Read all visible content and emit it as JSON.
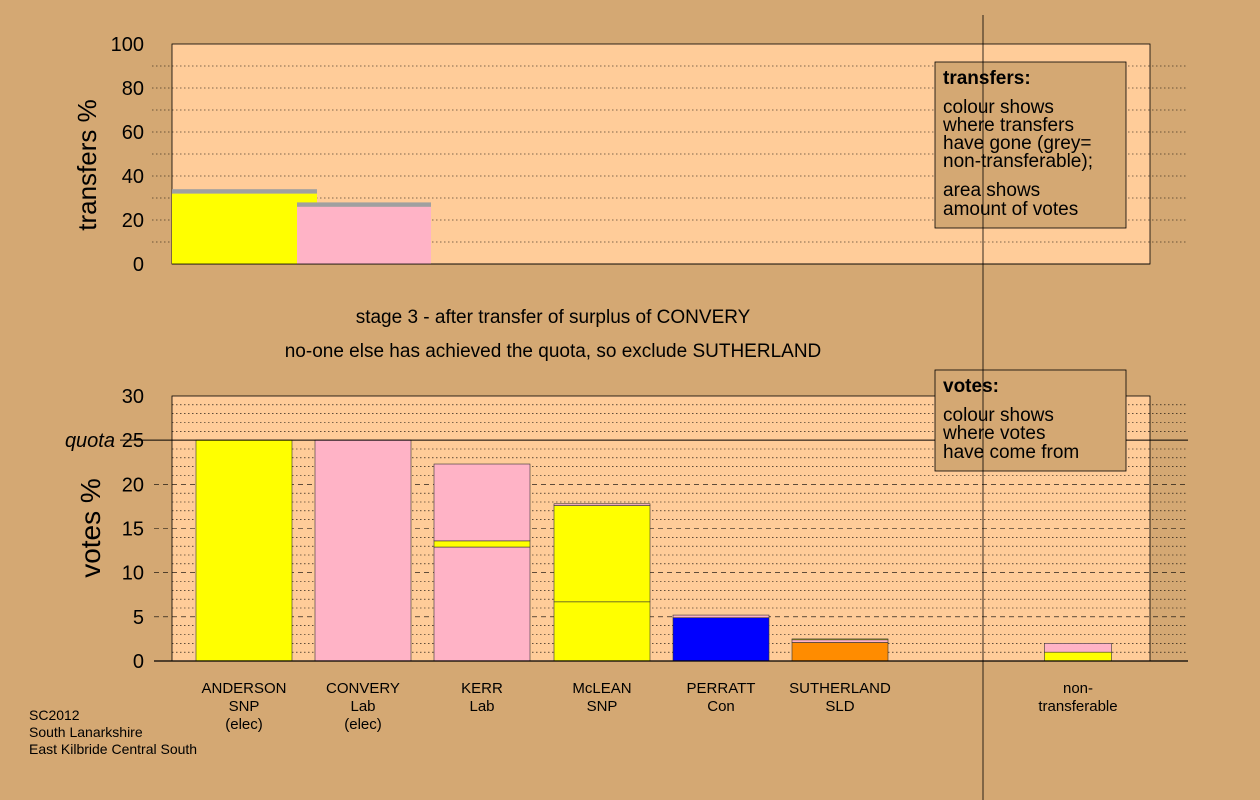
{
  "chart_data": [
    {
      "id": "transfers",
      "type": "bar",
      "ylabel": "transfers %",
      "ylim": [
        0,
        100
      ],
      "yticks": [
        0,
        20,
        40,
        60,
        80,
        100
      ],
      "bars": [
        {
          "candidate": "ANDERSON",
          "segments": [
            {
              "from": 0,
              "to": 32,
              "color": "#ffff00"
            },
            {
              "from": 32,
              "to": 34,
              "color": "#a0a0a0"
            }
          ]
        },
        {
          "candidate": "CONVERY",
          "segments": [
            {
              "from": 0,
              "to": 27,
              "color": "#ffb3c6"
            },
            {
              "from": 26,
              "to": 28,
              "color": "#a0a0a0"
            }
          ]
        }
      ],
      "legend": {
        "title": "transfers:",
        "lines1": [
          "colour shows",
          "where transfers",
          "have gone (grey=",
          "non-transferable);"
        ],
        "lines2": [
          "area shows",
          "amount of votes"
        ]
      }
    },
    {
      "id": "votes",
      "type": "bar",
      "ylabel": "votes %",
      "ylim": [
        0,
        30
      ],
      "yticks": [
        0,
        5,
        10,
        15,
        20,
        25,
        30
      ],
      "quota": 25,
      "quota_label": "quota",
      "categories": [
        {
          "name": "ANDERSON",
          "party": "SNP",
          "note": "(elec)",
          "segments": [
            {
              "value": 25,
              "color": "#ffff00"
            }
          ]
        },
        {
          "name": "CONVERY",
          "party": "Lab",
          "note": "(elec)",
          "segments": [
            {
              "value": 25,
              "color": "#ffb3c6"
            }
          ]
        },
        {
          "name": "KERR",
          "party": "Lab",
          "note": "",
          "segments": [
            {
              "value": 12.9,
              "color": "#ffb3c6"
            },
            {
              "value": 0.7,
              "color": "#ffff00"
            },
            {
              "value": 8.7,
              "color": "#ffb3c6"
            }
          ]
        },
        {
          "name": "McLEAN",
          "party": "SNP",
          "note": "",
          "segments": [
            {
              "value": 6.7,
              "color": "#ffff00"
            },
            {
              "value": 10.9,
              "color": "#ffff00"
            },
            {
              "value": 0.2,
              "color": "#ffb3c6"
            }
          ]
        },
        {
          "name": "PERRATT",
          "party": "Con",
          "note": "",
          "segments": [
            {
              "value": 4.9,
              "color": "#0000ff"
            },
            {
              "value": 0.3,
              "color": "#ffb3c6"
            }
          ]
        },
        {
          "name": "SUTHERLAND",
          "party": "SLD",
          "note": "",
          "segments": [
            {
              "value": 2.1,
              "color": "#ff8c00"
            },
            {
              "value": 0.3,
              "color": "#ffb3c6"
            },
            {
              "value": 0.1,
              "color": "#ffff00"
            }
          ]
        },
        {
          "name": "non-",
          "party": "transferable",
          "note": "",
          "nontransferable": true,
          "segments": [
            {
              "value": 1.0,
              "color": "#ffff00"
            },
            {
              "value": 1.0,
              "color": "#ffb3c6"
            }
          ]
        }
      ],
      "legend": {
        "title": "votes:",
        "lines": [
          "colour shows",
          "where votes",
          "have come from"
        ]
      }
    }
  ],
  "headings": {
    "stage": "stage 3 - after transfer of surplus of CONVERY",
    "status": "no-one else has achieved the quota, so exclude SUTHERLAND"
  },
  "footer": [
    "SC2012",
    "South Lanarkshire",
    "East Kilbride Central South"
  ],
  "colors": {
    "background": "#d4a873",
    "plot": "#ffcc99",
    "snp": "#ffff00",
    "lab": "#ffb3c6",
    "con": "#0000ff",
    "sld": "#ff8c00",
    "nontransferable": "#a0a0a0"
  }
}
